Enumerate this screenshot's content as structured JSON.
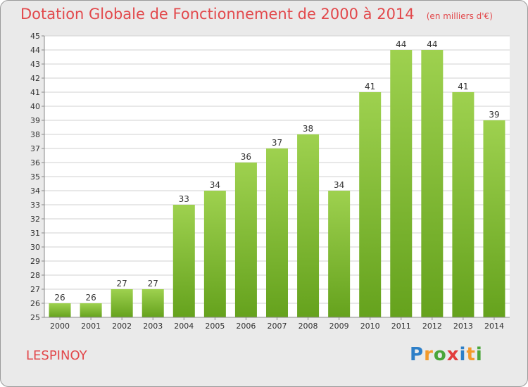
{
  "header": {
    "title": "Dotation Globale de Fonctionnement de 2000 à 2014",
    "unit": "(en milliers d'€)"
  },
  "footer": {
    "commune": "LESPINOY",
    "brand": "Proxiti",
    "brand_colors": [
      "#2d7fc8",
      "#f39a2b",
      "#4aa63a",
      "#e23c3c",
      "#2d7fc8",
      "#f39a2b",
      "#4aa63a"
    ]
  },
  "colors": {
    "title": "#e2484b",
    "bar_light": "#9ed14f",
    "bar_dark": "#65a21d",
    "background": "#eaeaea",
    "plot_background": "#ffffff",
    "grid": "#d2d2d2"
  },
  "chart_data": {
    "type": "bar",
    "categories": [
      "2000",
      "2001",
      "2002",
      "2003",
      "2004",
      "2005",
      "2006",
      "2007",
      "2008",
      "2009",
      "2010",
      "2011",
      "2012",
      "2013",
      "2014"
    ],
    "values": [
      26,
      26,
      27,
      27,
      33,
      34,
      36,
      37,
      38,
      34,
      41,
      44,
      44,
      41,
      39
    ],
    "ylim": [
      25,
      45
    ],
    "yticks": [
      25,
      26,
      27,
      28,
      29,
      30,
      31,
      32,
      33,
      34,
      35,
      36,
      37,
      38,
      39,
      40,
      41,
      42,
      43,
      44,
      45
    ],
    "grid": true,
    "data_labels": true
  }
}
